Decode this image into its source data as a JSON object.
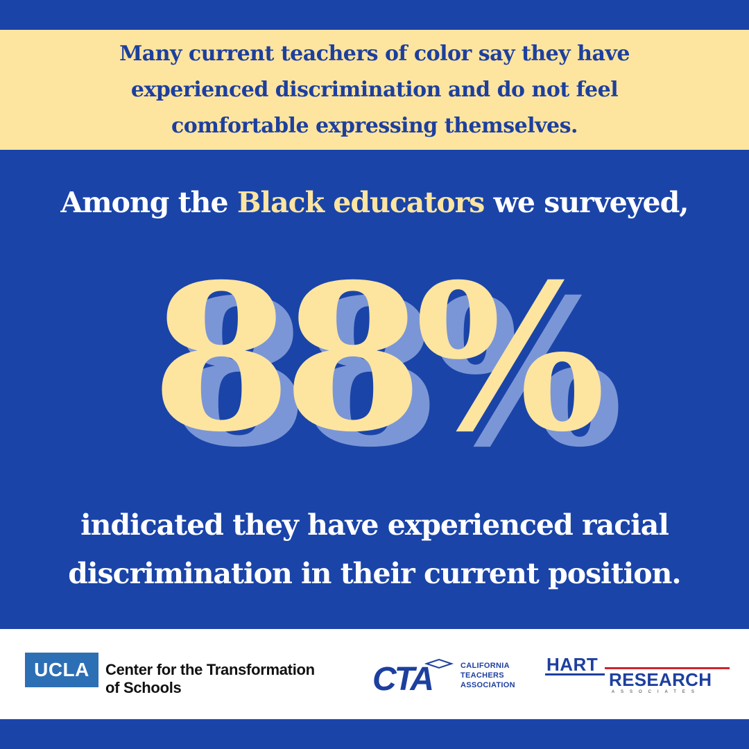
{
  "banner": {
    "text": "Many current teachers of color say they have experienced discrimination and do not feel comfortable expressing themselves."
  },
  "lead": {
    "before": "Among the ",
    "highlight": "Black educators",
    "after": " we surveyed,"
  },
  "stat": {
    "value": "88%"
  },
  "closing": {
    "line1": "indicated they have experienced racial",
    "line2": "discrimination in their current position."
  },
  "footer": {
    "ucla": {
      "badge": "UCLA",
      "name_line1": "Center for the Transformation",
      "name_line2": "of Schools"
    },
    "cta": {
      "mark": "CTA",
      "name_line1": "CALIFORNIA",
      "name_line2": "TEACHERS",
      "name_line3": "ASSOCIATION"
    },
    "hart": {
      "word1": "HART",
      "word2": "RESEARCH",
      "word3": "ASSOCIATES"
    }
  },
  "colors": {
    "background": "#1a44a8",
    "banner": "#fde5a0",
    "highlight": "#fde5a0",
    "shadow": "#7b96d6",
    "text": "#ffffff"
  }
}
